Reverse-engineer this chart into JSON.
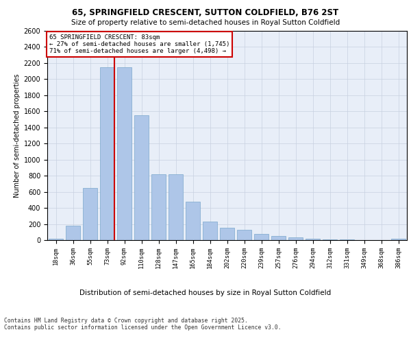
{
  "title1": "65, SPRINGFIELD CRESCENT, SUTTON COLDFIELD, B76 2ST",
  "title2": "Size of property relative to semi-detached houses in Royal Sutton Coldfield",
  "xlabel": "Distribution of semi-detached houses by size in Royal Sutton Coldfield",
  "ylabel": "Number of semi-detached properties",
  "categories": [
    "18sqm",
    "36sqm",
    "55sqm",
    "73sqm",
    "92sqm",
    "110sqm",
    "128sqm",
    "147sqm",
    "165sqm",
    "184sqm",
    "202sqm",
    "220sqm",
    "239sqm",
    "257sqm",
    "276sqm",
    "294sqm",
    "312sqm",
    "331sqm",
    "349sqm",
    "368sqm",
    "386sqm"
  ],
  "values": [
    20,
    180,
    650,
    2150,
    2150,
    1550,
    820,
    820,
    480,
    230,
    150,
    130,
    75,
    50,
    30,
    20,
    5,
    5,
    0,
    0,
    20
  ],
  "bar_color": "#aec6e8",
  "bar_edge_color": "#7aa8cc",
  "pct_smaller": "27%",
  "pct_smaller_n": "1,745",
  "pct_larger": "71%",
  "pct_larger_n": "4,498",
  "annotation_box_color": "#cc0000",
  "ylim": [
    0,
    2600
  ],
  "yticks": [
    0,
    200,
    400,
    600,
    800,
    1000,
    1200,
    1400,
    1600,
    1800,
    2000,
    2200,
    2400,
    2600
  ],
  "footnote": "Contains HM Land Registry data © Crown copyright and database right 2025.\nContains public sector information licensed under the Open Government Licence v3.0.",
  "bg_color": "#e8eef8",
  "grid_color": "#c8d0e0"
}
